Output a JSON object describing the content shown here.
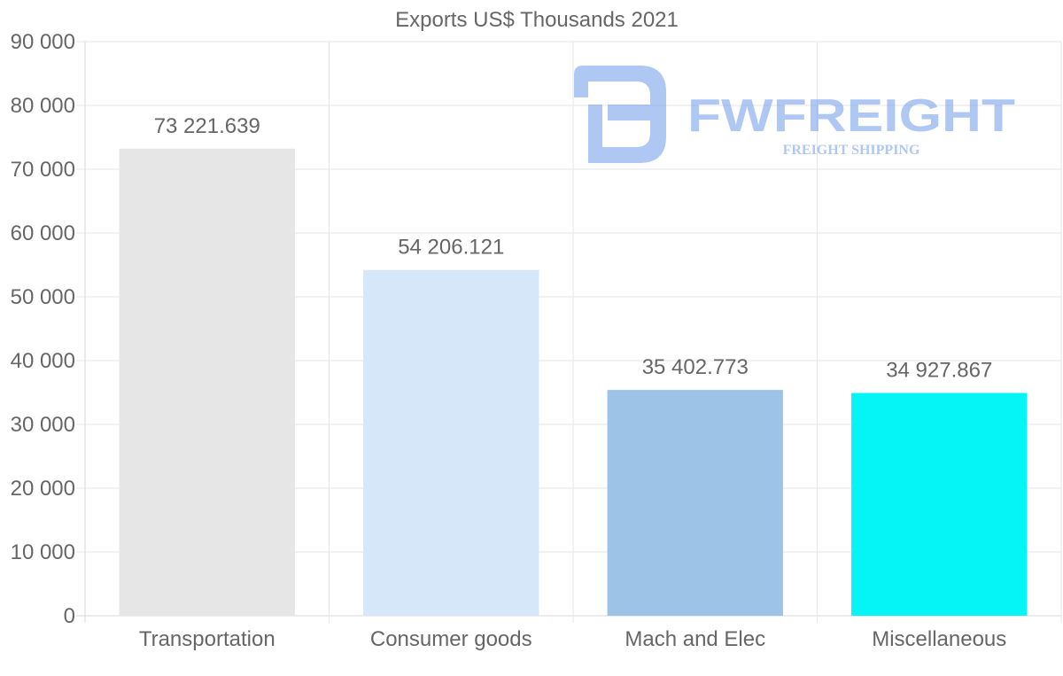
{
  "chart_data": {
    "type": "bar",
    "title": "Exports US$ Thousands 2021",
    "categories": [
      "Transportation",
      "Consumer goods",
      "Mach and Elec",
      "Miscellaneous"
    ],
    "values": [
      73221.639,
      54206.121,
      35402.773,
      34927.867
    ],
    "value_labels": [
      "73 221.639",
      "54 206.121",
      "35 402.773",
      "34 927.867"
    ],
    "colors": [
      "#e6e6e6",
      "#d6e7f9",
      "#9dc4e6",
      "#05f5f7"
    ],
    "ylim": [
      0,
      90000
    ],
    "yticks": [
      0,
      10000,
      20000,
      30000,
      40000,
      50000,
      60000,
      70000,
      80000,
      90000
    ],
    "ytick_labels": [
      "0",
      "10 000",
      "20 000",
      "30 000",
      "40 000",
      "50 000",
      "60 000",
      "70 000",
      "80 000",
      "90 000"
    ],
    "xlabel": "",
    "ylabel": "",
    "grid": true
  },
  "watermark": {
    "brand": "FWFREIGHT",
    "tagline": "FREIGHT SHIPPING",
    "color": "#6f9bea"
  }
}
